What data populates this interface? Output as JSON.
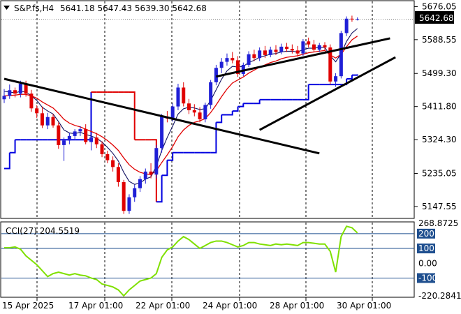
{
  "header": {
    "symbol": "S&P.fs,H4",
    "ohlc": "5641.18 5647.43 5639.30 5642.68"
  },
  "price_axis": {
    "ticks": [
      "5676.05",
      "5588.55",
      "5499.30",
      "5411.80",
      "5324.30",
      "5235.05",
      "5147.55"
    ],
    "current_price_label": "5642.68"
  },
  "cci_panel": {
    "label": "CCI(27) 204.5519",
    "ticks": [
      "268.8725",
      "200",
      "100",
      "0.00",
      "-100",
      "-220.2841"
    ]
  },
  "time_axis": {
    "ticks": [
      "15 Apr 2025",
      "17 Apr 01:00",
      "22 Apr 01:00",
      "24 Apr 01:00",
      "28 Apr 01:00",
      "30 Apr 01:00"
    ]
  },
  "colors": {
    "bull": "#1f1fd6",
    "bear": "#e00000",
    "fast_ma": "#101060",
    "slow_ma": "#e00000",
    "stop_blue": "#0000e0",
    "stop_red": "#e00000",
    "cci": "#7fe000",
    "cci_level": "#1f4f8f",
    "trend_line": "#000000"
  },
  "chart_data": {
    "type": "candlestick",
    "title": "S&P.fs,H4",
    "ylim": [
      5118,
      5686
    ],
    "candles": [
      [
        5431,
        5458,
        5421,
        5440
      ],
      [
        5440,
        5470,
        5432,
        5455
      ],
      [
        5455,
        5462,
        5436,
        5446
      ],
      [
        5446,
        5480,
        5436,
        5472
      ],
      [
        5472,
        5480,
        5438,
        5446
      ],
      [
        5446,
        5456,
        5398,
        5407
      ],
      [
        5407,
        5415,
        5382,
        5394
      ],
      [
        5394,
        5412,
        5355,
        5362
      ],
      [
        5362,
        5395,
        5352,
        5384
      ],
      [
        5384,
        5392,
        5356,
        5362
      ],
      [
        5362,
        5370,
        5300,
        5310
      ],
      [
        5310,
        5330,
        5268,
        5322
      ],
      [
        5322,
        5342,
        5312,
        5334
      ],
      [
        5334,
        5352,
        5326,
        5346
      ],
      [
        5346,
        5360,
        5334,
        5352
      ],
      [
        5352,
        5365,
        5312,
        5318
      ],
      [
        5318,
        5342,
        5296,
        5330
      ],
      [
        5330,
        5342,
        5302,
        5312
      ],
      [
        5312,
        5320,
        5278,
        5286
      ],
      [
        5286,
        5295,
        5262,
        5270
      ],
      [
        5270,
        5280,
        5240,
        5252
      ],
      [
        5252,
        5262,
        5200,
        5212
      ],
      [
        5212,
        5218,
        5128,
        5136
      ],
      [
        5136,
        5180,
        5128,
        5172
      ],
      [
        5172,
        5205,
        5160,
        5196
      ],
      [
        5196,
        5228,
        5186,
        5220
      ],
      [
        5220,
        5248,
        5208,
        5240
      ],
      [
        5240,
        5262,
        5222,
        5232
      ],
      [
        5232,
        5310,
        5222,
        5302
      ],
      [
        5302,
        5392,
        5290,
        5385
      ],
      [
        5385,
        5400,
        5370,
        5380
      ],
      [
        5380,
        5420,
        5372,
        5412
      ],
      [
        5412,
        5472,
        5402,
        5462
      ],
      [
        5462,
        5476,
        5412,
        5420
      ],
      [
        5420,
        5432,
        5392,
        5402
      ],
      [
        5402,
        5418,
        5386,
        5396
      ],
      [
        5396,
        5410,
        5370,
        5378
      ],
      [
        5378,
        5422,
        5370,
        5416
      ],
      [
        5416,
        5482,
        5406,
        5476
      ],
      [
        5476,
        5522,
        5468,
        5514
      ],
      [
        5514,
        5540,
        5500,
        5530
      ],
      [
        5530,
        5552,
        5520,
        5540
      ],
      [
        5540,
        5556,
        5526,
        5534
      ],
      [
        5534,
        5545,
        5490,
        5498
      ],
      [
        5498,
        5528,
        5492,
        5522
      ],
      [
        5522,
        5558,
        5516,
        5550
      ],
      [
        5550,
        5562,
        5532,
        5540
      ],
      [
        5540,
        5568,
        5532,
        5560
      ],
      [
        5560,
        5572,
        5540,
        5548
      ],
      [
        5548,
        5570,
        5542,
        5562
      ],
      [
        5562,
        5574,
        5548,
        5556
      ],
      [
        5556,
        5578,
        5550,
        5570
      ],
      [
        5570,
        5580,
        5556,
        5564
      ],
      [
        5564,
        5576,
        5552,
        5560
      ],
      [
        5560,
        5572,
        5544,
        5552
      ],
      [
        5552,
        5590,
        5546,
        5584
      ],
      [
        5584,
        5594,
        5568,
        5576
      ],
      [
        5576,
        5588,
        5556,
        5562
      ],
      [
        5562,
        5580,
        5556,
        5574
      ],
      [
        5574,
        5582,
        5560,
        5568
      ],
      [
        5568,
        5576,
        5470,
        5478
      ],
      [
        5478,
        5500,
        5464,
        5492
      ],
      [
        5492,
        5612,
        5486,
        5606
      ],
      [
        5606,
        5650,
        5598,
        5644
      ],
      [
        5644,
        5652,
        5636,
        5642
      ],
      [
        5641.18,
        5647.43,
        5639.3,
        5642.68
      ]
    ],
    "fast_ma": [
      5452,
      5450,
      5448,
      5452,
      5450,
      5440,
      5428,
      5410,
      5400,
      5392,
      5372,
      5350,
      5342,
      5340,
      5344,
      5338,
      5334,
      5328,
      5318,
      5304,
      5288,
      5268,
      5238,
      5214,
      5206,
      5210,
      5220,
      5226,
      5254,
      5296,
      5330,
      5360,
      5392,
      5406,
      5410,
      5408,
      5404,
      5406,
      5428,
      5456,
      5484,
      5506,
      5518,
      5516,
      5518,
      5528,
      5534,
      5542,
      5546,
      5550,
      5552,
      5556,
      5558,
      5558,
      5556,
      5562,
      5566,
      5566,
      5568,
      5568,
      5546,
      5530,
      5552,
      5584,
      5606,
      5618
    ],
    "slow_ma": [
      5440,
      5441,
      5442,
      5444,
      5444,
      5440,
      5434,
      5424,
      5416,
      5408,
      5394,
      5378,
      5368,
      5362,
      5358,
      5352,
      5346,
      5340,
      5332,
      5322,
      5310,
      5296,
      5276,
      5258,
      5246,
      5238,
      5234,
      5232,
      5242,
      5264,
      5284,
      5306,
      5332,
      5350,
      5362,
      5370,
      5374,
      5380,
      5396,
      5416,
      5438,
      5458,
      5474,
      5482,
      5490,
      5500,
      5508,
      5516,
      5522,
      5528,
      5532,
      5538,
      5542,
      5544,
      5546,
      5550,
      5554,
      5556,
      5558,
      5560,
      5548,
      5540,
      5550,
      5570,
      5588,
      5598
    ],
    "stop_line": [
      5248,
      5290,
      5324,
      5324,
      5324,
      5324,
      5324,
      5324,
      5324,
      5324,
      5324,
      5324,
      5324,
      5324,
      5324,
      5324,
      5450,
      5450,
      5450,
      5450,
      5450,
      5450,
      5450,
      5450,
      5324,
      5324,
      5324,
      5324,
      5160,
      5230,
      5270,
      5290,
      5290,
      5290,
      5290,
      5290,
      5290,
      5290,
      5290,
      5370,
      5390,
      5390,
      5400,
      5412,
      5420,
      5420,
      5420,
      5430,
      5430,
      5430,
      5430,
      5430,
      5430,
      5430,
      5430,
      5430,
      5470,
      5470,
      5470,
      5470,
      5470,
      5470,
      5470,
      5485,
      5495,
      5497
    ],
    "stop_side": [
      "buy",
      "buy",
      "buy",
      "buy",
      "buy",
      "buy",
      "buy",
      "buy",
      "buy",
      "buy",
      "buy",
      "buy",
      "buy",
      "buy",
      "buy",
      "buy",
      "sell",
      "sell",
      "sell",
      "sell",
      "sell",
      "sell",
      "sell",
      "sell",
      "sell",
      "sell",
      "sell",
      "sell",
      "buy",
      "buy",
      "buy",
      "buy",
      "buy",
      "buy",
      "buy",
      "buy",
      "buy",
      "buy",
      "buy",
      "buy",
      "buy",
      "buy",
      "buy",
      "buy",
      "buy",
      "buy",
      "buy",
      "buy",
      "buy",
      "buy",
      "buy",
      "buy",
      "buy",
      "buy",
      "buy",
      "buy",
      "buy",
      "buy",
      "buy",
      "buy",
      "buy",
      "buy",
      "buy",
      "buy",
      "buy",
      "buy"
    ],
    "trend_lines": [
      {
        "from": [
          0,
          5485
        ],
        "to": [
          58,
          5288
        ]
      },
      {
        "from": [
          39,
          5491
        ],
        "to": [
          71,
          5592
        ]
      },
      {
        "from": [
          47,
          5350
        ],
        "to": [
          72,
          5542
        ]
      }
    ],
    "cci": {
      "name": "CCI(27)",
      "value": 204.5519,
      "ylim": [
        -225,
        270
      ],
      "levels": [
        200,
        100,
        -100
      ],
      "values": [
        105,
        105,
        110,
        95,
        50,
        20,
        -10,
        -50,
        -90,
        -70,
        -60,
        -70,
        -80,
        -70,
        -80,
        -85,
        -100,
        -110,
        -140,
        -150,
        -160,
        -180,
        -220,
        -180,
        -150,
        -120,
        -110,
        -100,
        -70,
        40,
        90,
        110,
        150,
        180,
        160,
        130,
        100,
        120,
        140,
        150,
        150,
        140,
        125,
        110,
        120,
        140,
        140,
        130,
        125,
        120,
        130,
        125,
        130,
        125,
        120,
        140,
        140,
        135,
        130,
        130,
        80,
        -60,
        180,
        250,
        240,
        205
      ]
    }
  }
}
